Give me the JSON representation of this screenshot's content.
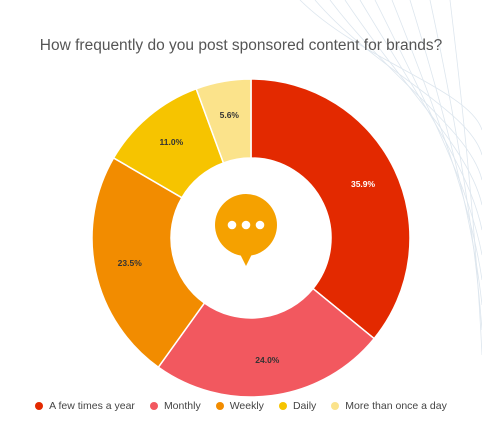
{
  "chart_data": {
    "type": "pie",
    "title": "How frequently do you post sponsored content for brands?",
    "slices": [
      {
        "label": "A few times a year",
        "value": 35.9,
        "display": "35.9%",
        "color": "#E32900",
        "label_color": "#ffffff"
      },
      {
        "label": "Monthly",
        "value": 24.0,
        "display": "24.0%",
        "color": "#F2585F",
        "label_color": "#333333"
      },
      {
        "label": "Weekly",
        "value": 23.5,
        "display": "23.5%",
        "color": "#F28C00",
        "label_color": "#333333"
      },
      {
        "label": "Daily",
        "value": 11.0,
        "display": "11.0%",
        "color": "#F6C400",
        "label_color": "#333333"
      },
      {
        "label": "More than once a day",
        "value": 5.6,
        "display": "5.6%",
        "color": "#FBE38B",
        "label_color": "#333333"
      }
    ],
    "donut": true,
    "center_icon": "speech-bubble-ellipsis-icon",
    "center_icon_color": "#F5A100",
    "legend_position": "bottom"
  }
}
